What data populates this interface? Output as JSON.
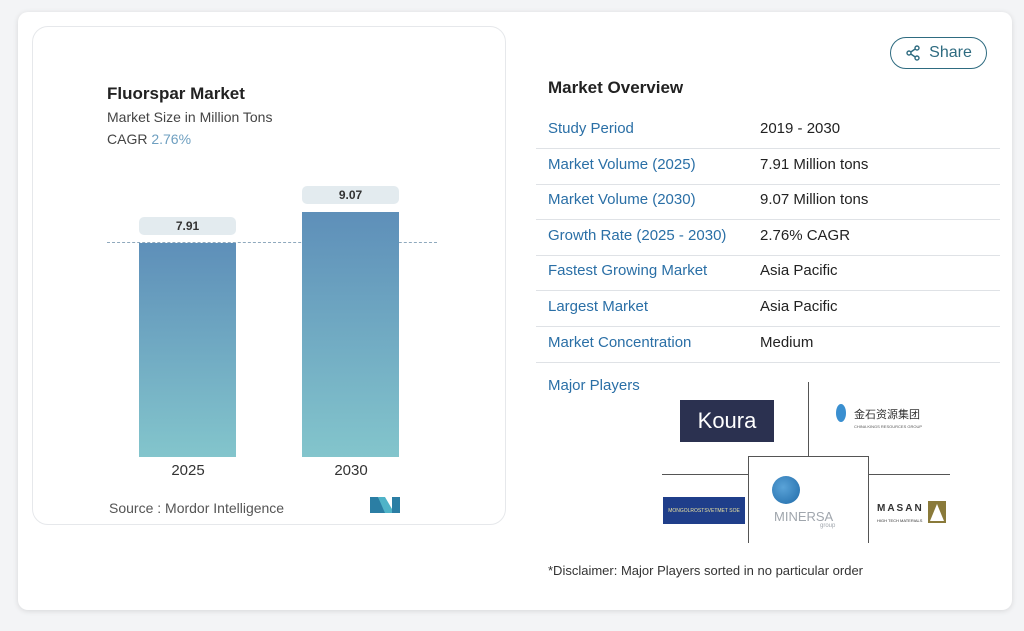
{
  "share_label": "Share",
  "chart_data": {
    "type": "bar",
    "title": "Fluorspar Market",
    "subtitle": "Market Size in Million Tons",
    "cagr_label": "CAGR",
    "cagr_value": "2.76%",
    "categories": [
      "2025",
      "2030"
    ],
    "values": [
      7.91,
      9.07
    ],
    "value_labels": [
      "7.91",
      "9.07"
    ],
    "ylim": [
      0,
      9.07
    ],
    "source": "Source :  Mordor Intelligence",
    "colors": {
      "bar_top": "#5e8fb9",
      "bar_bottom": "#83c5cc",
      "accent": "#6e9fc0"
    }
  },
  "overview": {
    "title": "Market Overview",
    "rows": [
      {
        "label": "Study Period",
        "value": "2019 - 2030"
      },
      {
        "label": "Market Volume (2025)",
        "value": "7.91 Million tons"
      },
      {
        "label": "Market Volume (2030)",
        "value": "9.07 Million tons"
      },
      {
        "label": "Growth Rate (2025 - 2030)",
        "value": "2.76% CAGR"
      },
      {
        "label": "Fastest Growing Market",
        "value": "Asia Pacific"
      },
      {
        "label": "Largest Market",
        "value": "Asia Pacific"
      },
      {
        "label": "Market Concentration",
        "value": "Medium"
      }
    ],
    "major_players_label": "Major Players",
    "players": [
      "Koura",
      "China Kings Resources Group",
      "Mongolrostsvetmet SOE",
      "Minersa Group",
      "Masan High-Tech Materials"
    ],
    "logo_text": {
      "koura": "Koura",
      "kings_cn": "金石资源集团",
      "kings_en": "CHINA KINGS RESOURCES GROUP",
      "mongol": "MONGOLROSTSVETMET SOE",
      "minersa": "MINERSA",
      "minersa_sub": "group",
      "masan": "MASAN",
      "masan_sub": "HIGH TECH MATERIALS"
    },
    "disclaimer": "*Disclaimer: Major Players sorted in no particular order"
  }
}
